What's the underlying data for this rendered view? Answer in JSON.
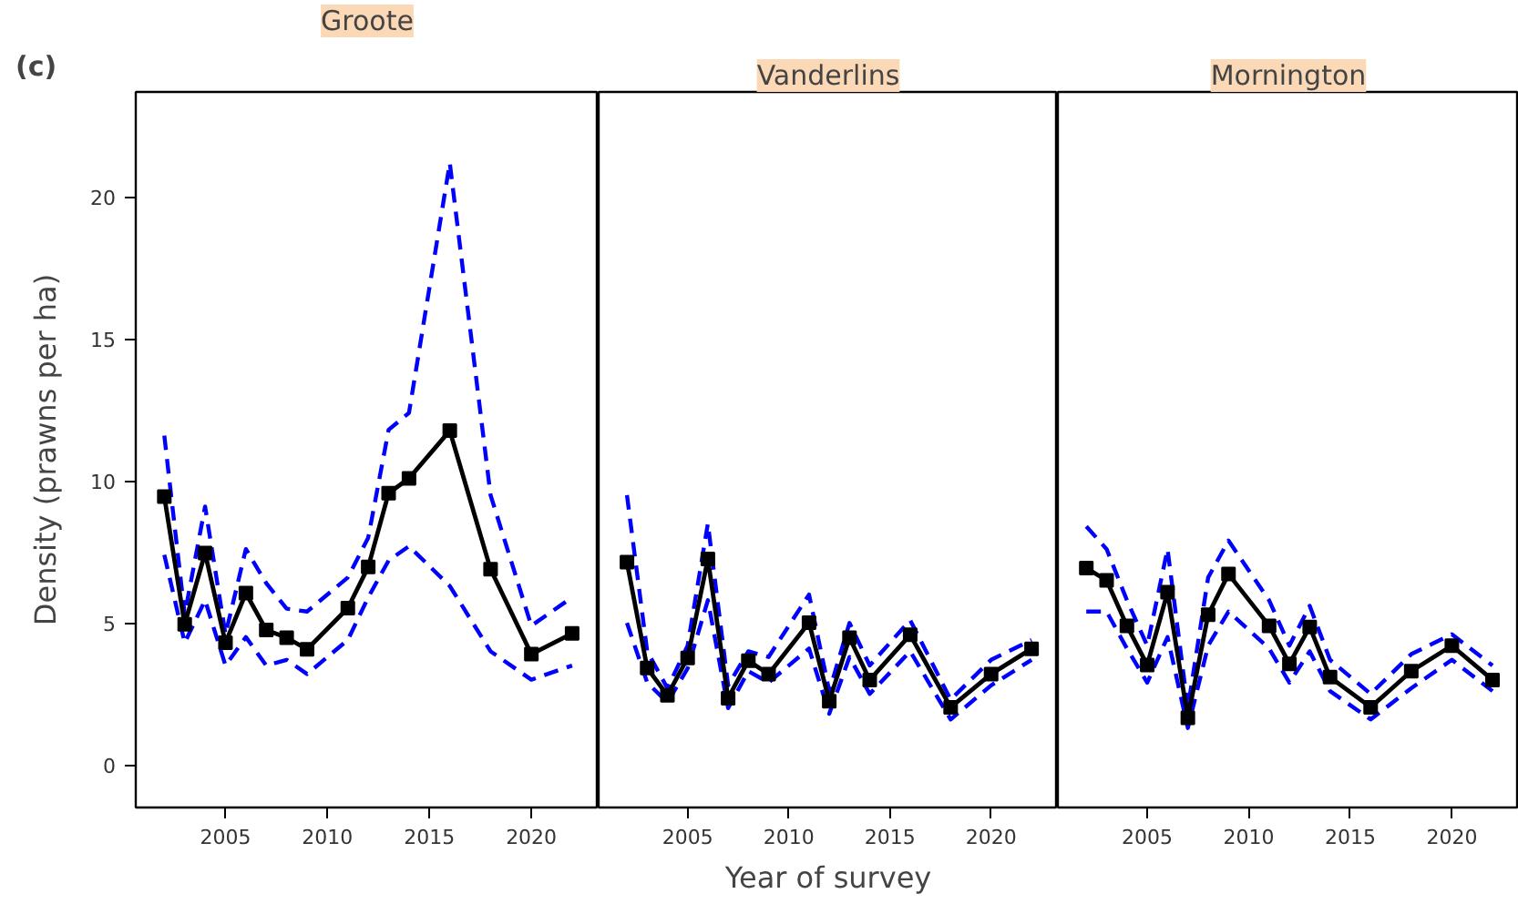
{
  "chart_data": [
    {
      "type": "line",
      "title": "Groote",
      "ylabel": "Density (prawns per ha)",
      "annotations": [
        "(c)"
      ],
      "xlim": [
        2000.6,
        2023.3
      ],
      "ylim": [
        -1.5,
        23.7
      ],
      "xticks": [
        {
          "value": 2005,
          "label": "2005"
        },
        {
          "value": 2010,
          "label": "2010"
        },
        {
          "value": 2015,
          "label": "2015"
        },
        {
          "value": 2020,
          "label": "2020"
        }
      ],
      "yticks": [
        0,
        5,
        10,
        15,
        20
      ],
      "grid": false,
      "x": [
        2002,
        2003,
        2004,
        2005,
        2006,
        2007,
        2008,
        2009,
        2011,
        2012,
        2013,
        2014,
        2016,
        2018,
        2020,
        2022
      ],
      "series": [
        {
          "color": "#0000ff",
          "line_style": "dashed",
          "marker": "none",
          "values": [
            11.6,
            5.3,
            9.1,
            4.6,
            7.6,
            6.4,
            5.5,
            5.4,
            6.6,
            8.0,
            11.8,
            12.4,
            21.2,
            9.5,
            4.9,
            5.9
          ]
        },
        {
          "color": "#0000ff",
          "line_style": "dashed",
          "marker": "none",
          "values": [
            7.4,
            4.3,
            5.8,
            3.5,
            4.5,
            3.5,
            3.7,
            3.2,
            4.4,
            5.9,
            7.2,
            7.7,
            6.3,
            4.0,
            3.0,
            3.5
          ]
        },
        {
          "color": "#000000",
          "line_style": "solid",
          "marker": "square",
          "values": [
            9.45,
            4.95,
            7.46,
            4.3,
            6.05,
            4.75,
            4.48,
            4.07,
            5.52,
            6.97,
            9.57,
            10.09,
            11.77,
            6.89,
            3.9,
            4.63
          ]
        }
      ]
    },
    {
      "type": "line",
      "title": "Vanderlins",
      "xlabel": "Year of survey",
      "tick_labels": "x",
      "xlim": [
        2000.6,
        2023.3
      ],
      "ylim": [
        -1.5,
        23.7
      ],
      "xticks": [
        {
          "value": 2005,
          "label": "2005"
        },
        {
          "value": 2010,
          "label": "2010"
        },
        {
          "value": 2015,
          "label": "2015"
        },
        {
          "value": 2020,
          "label": "2020"
        }
      ],
      "yticks": [
        0,
        5,
        10,
        15,
        20
      ],
      "grid": false,
      "x": [
        2002,
        2003,
        2004,
        2005,
        2006,
        2007,
        2008,
        2009,
        2011,
        2012,
        2013,
        2014,
        2016,
        2018,
        2020,
        2022
      ],
      "series": [
        {
          "color": "#0000ff",
          "line_style": "dashed",
          "marker": "none",
          "values": [
            9.5,
            4.0,
            2.7,
            4.2,
            8.5,
            2.8,
            4.0,
            3.8,
            6.0,
            2.6,
            5.0,
            3.5,
            5.1,
            2.3,
            3.7,
            4.4
          ]
        },
        {
          "color": "#0000ff",
          "line_style": "dashed",
          "marker": "none",
          "values": [
            5.0,
            2.9,
            2.2,
            3.4,
            5.8,
            2.0,
            3.3,
            2.9,
            4.1,
            1.8,
            3.8,
            2.5,
            4.0,
            1.6,
            2.8,
            3.7
          ]
        },
        {
          "color": "#000000",
          "line_style": "solid",
          "marker": "square",
          "values": [
            7.14,
            3.41,
            2.45,
            3.77,
            7.25,
            2.35,
            3.67,
            3.2,
            5.01,
            2.24,
            4.48,
            2.99,
            4.58,
            2.03,
            3.2,
            4.09
          ]
        }
      ]
    },
    {
      "type": "line",
      "title": "Mornington",
      "tick_labels": "x",
      "xlim": [
        2000.6,
        2023.3
      ],
      "ylim": [
        -1.5,
        23.7
      ],
      "xticks": [
        {
          "value": 2005,
          "label": "2005"
        },
        {
          "value": 2010,
          "label": "2010"
        },
        {
          "value": 2015,
          "label": "2015"
        },
        {
          "value": 2020,
          "label": "2020"
        }
      ],
      "yticks": [
        0,
        5,
        10,
        15,
        20
      ],
      "grid": false,
      "x": [
        2002,
        2003,
        2004,
        2005,
        2006,
        2007,
        2008,
        2009,
        2011,
        2012,
        2013,
        2014,
        2016,
        2018,
        2020,
        2022
      ],
      "series": [
        {
          "color": "#0000ff",
          "line_style": "dashed",
          "marker": "none",
          "values": [
            8.4,
            7.6,
            5.8,
            4.2,
            7.6,
            2.0,
            6.6,
            7.9,
            5.8,
            4.2,
            5.6,
            3.7,
            2.5,
            3.9,
            4.6,
            3.5
          ]
        },
        {
          "color": "#0000ff",
          "line_style": "dashed",
          "marker": "none",
          "values": [
            5.4,
            5.4,
            4.1,
            2.9,
            4.5,
            1.3,
            4.2,
            5.4,
            4.1,
            2.9,
            4.0,
            2.6,
            1.6,
            2.7,
            3.7,
            2.6
          ]
        },
        {
          "color": "#000000",
          "line_style": "solid",
          "marker": "square",
          "values": [
            6.93,
            6.5,
            4.9,
            3.52,
            6.08,
            1.66,
            5.29,
            6.72,
            4.9,
            3.56,
            4.86,
            3.09,
            2.03,
            3.3,
            4.2,
            2.99
          ]
        }
      ]
    }
  ]
}
